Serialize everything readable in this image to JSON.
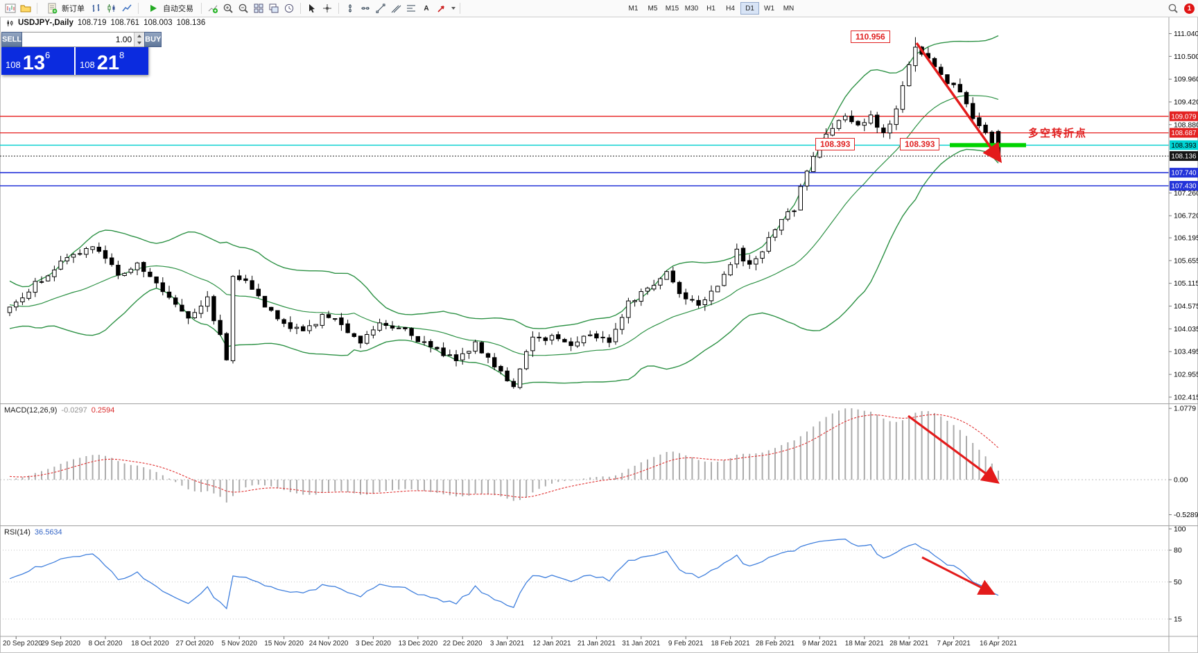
{
  "toolbar": {
    "new_order_label": "新订单",
    "autotrading_label": "自动交易",
    "text_tool_label": "A",
    "timeframes": [
      "M1",
      "M5",
      "M15",
      "M30",
      "H1",
      "H4",
      "D1",
      "W1",
      "MN"
    ],
    "active_timeframe": "D1",
    "notification_count": "1"
  },
  "symbol_bar": {
    "title": "USDJPY-,Daily",
    "open": "108.719",
    "high": "108.761",
    "low": "108.003",
    "close": "108.136"
  },
  "trade_panel": {
    "sell_label": "SELL",
    "buy_label": "BUY",
    "volume": "1.00",
    "sell_base": "108",
    "sell_big": "13",
    "sell_sup": "6",
    "buy_base": "108",
    "buy_big": "21",
    "buy_sup": "8"
  },
  "annotations": {
    "peak_price": "110.956",
    "support_price_left": "108.393",
    "support_price_right": "108.393",
    "turning_point": "多空转折点"
  },
  "macd": {
    "title": "MACD(12,26,9)",
    "main_value": "-0.0297",
    "signal_value": "0.2594",
    "axis_labels": [
      "1.0779",
      "0.00",
      "-0.5289"
    ]
  },
  "rsi": {
    "title": "RSI(14)",
    "value": "36.5634",
    "axis_labels": [
      "100",
      "80",
      "50",
      "15"
    ],
    "levels": [
      80,
      50,
      15
    ]
  },
  "price_axis_ticks": [
    "111.040",
    "110.500",
    "109.960",
    "109.420",
    "108.880",
    "107.260",
    "106.720",
    "106.195",
    "105.655",
    "105.115",
    "104.575",
    "104.035",
    "103.495",
    "102.955",
    "102.415"
  ],
  "levels": [
    {
      "label": "109.079",
      "value": 109.079,
      "type": "red"
    },
    {
      "label": "108.687",
      "value": 108.687,
      "type": "red"
    },
    {
      "label": "108.393",
      "value": 108.393,
      "type": "cyan"
    },
    {
      "label": "108.136",
      "value": 108.136,
      "type": "bid"
    },
    {
      "label": "107.740",
      "value": 107.74,
      "type": "blue"
    },
    {
      "label": "107.430",
      "value": 107.43,
      "type": "blue"
    }
  ],
  "colors": {
    "red_line": "#e62020",
    "cyan_line": "#00cfcf",
    "blue_line": "#2433d9",
    "bid_line": "#222222",
    "bands": "#2c9144",
    "candle_up": "#ffffff",
    "candle_down": "#000000",
    "macd_hist": "#ababab",
    "macd_signal": "#e03030",
    "rsi_line": "#3f7fdd",
    "arrow": "#e31b1b",
    "support_zone": "#00d300",
    "badge_red": "#e32222",
    "badge_cyan": "#00d5d5",
    "badge_blue": "#2433d9",
    "badge_bid": "#141414"
  },
  "chart_data": {
    "type": "candlestick",
    "symbol": "USDJPY-",
    "timeframe": "Daily",
    "title": "USDJPY-,Daily",
    "y_axis_range": [
      102.415,
      111.04
    ],
    "visible_candles": 156,
    "x_labels": [
      "20 Sep 2020",
      "29 Sep 2020",
      "8 Oct 2020",
      "18 Oct 2020",
      "27 Oct 2020",
      "5 Nov 2020",
      "15 Nov 2020",
      "24 Nov 2020",
      "3 Dec 2020",
      "13 Dec 2020",
      "22 Dec 2020",
      "3 Jan 2021",
      "12 Jan 2021",
      "21 Jan 2021",
      "31 Jan 2021",
      "9 Feb 2021",
      "18 Feb 2021",
      "28 Feb 2021",
      "9 Mar 2021",
      "18 Mar 2021",
      "28 Mar 2021",
      "7 Apr 2021",
      "16 Apr 2021"
    ],
    "price_path_anchors": [
      [
        -34,
        103.8
      ],
      [
        -29,
        105.1
      ],
      [
        -24,
        104.0
      ],
      [
        -19,
        105.2
      ],
      [
        -14,
        104.2
      ],
      [
        -9,
        105.0
      ],
      [
        -4,
        104.3
      ],
      [
        0,
        104.55
      ],
      [
        4,
        105.1
      ],
      [
        8,
        105.6
      ],
      [
        13,
        106.0
      ],
      [
        17,
        105.35
      ],
      [
        20,
        105.55
      ],
      [
        24,
        104.95
      ],
      [
        28,
        104.35
      ],
      [
        31,
        104.75
      ],
      [
        33,
        103.85
      ],
      [
        34,
        103.3
      ],
      [
        35,
        105.3
      ],
      [
        37,
        105.25
      ],
      [
        40,
        104.55
      ],
      [
        43,
        104.15
      ],
      [
        46,
        103.95
      ],
      [
        49,
        104.35
      ],
      [
        52,
        104.15
      ],
      [
        55,
        103.75
      ],
      [
        58,
        104.2
      ],
      [
        62,
        104.05
      ],
      [
        66,
        103.55
      ],
      [
        70,
        103.35
      ],
      [
        73,
        103.65
      ],
      [
        77,
        103.05
      ],
      [
        79,
        102.65
      ],
      [
        82,
        103.8
      ],
      [
        85,
        103.85
      ],
      [
        88,
        103.7
      ],
      [
        91,
        103.9
      ],
      [
        94,
        103.75
      ],
      [
        97,
        104.7
      ],
      [
        100,
        104.95
      ],
      [
        103,
        105.4
      ],
      [
        105,
        104.9
      ],
      [
        108,
        104.65
      ],
      [
        111,
        105.1
      ],
      [
        114,
        105.85
      ],
      [
        116,
        105.5
      ],
      [
        119,
        106.15
      ],
      [
        121,
        106.6
      ],
      [
        123,
        106.9
      ],
      [
        125,
        107.8
      ],
      [
        127,
        108.45
      ],
      [
        129,
        108.85
      ],
      [
        131,
        109.05
      ],
      [
        133,
        108.85
      ],
      [
        135,
        109.05
      ],
      [
        137,
        108.65
      ],
      [
        139,
        109.25
      ],
      [
        141,
        110.35
      ],
      [
        142,
        110.75
      ],
      [
        143,
        110.55
      ],
      [
        145,
        110.3
      ],
      [
        147,
        109.85
      ],
      [
        149,
        109.7
      ],
      [
        151,
        109.1
      ],
      [
        153,
        108.7
      ],
      [
        155,
        108.136
      ]
    ],
    "peak": {
      "index": 142,
      "high": 110.956
    },
    "last_candle": {
      "open": 108.719,
      "high": 108.761,
      "low": 108.003,
      "close": 108.136
    },
    "indicators": {
      "bollinger_period": 20,
      "bollinger_deviation": 2,
      "macd": [
        12,
        26,
        9
      ],
      "rsi_period": 14
    },
    "macd_last": {
      "main": -0.0297,
      "signal": 0.2594
    },
    "rsi_last": 36.5634
  }
}
